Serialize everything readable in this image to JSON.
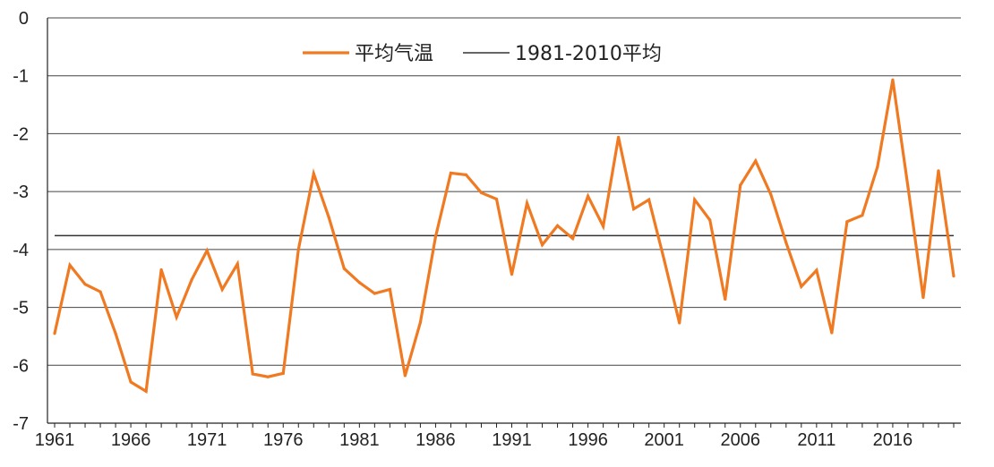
{
  "chart_data": {
    "type": "line",
    "title": "",
    "xlabel": "",
    "ylabel": "",
    "xlim": [
      1961,
      2020
    ],
    "ylim": [
      -7,
      0
    ],
    "yticks": [
      "0",
      "-1",
      "-2",
      "-3",
      "-4",
      "-5",
      "-6",
      "-7"
    ],
    "xticks": [
      "1961",
      "1966",
      "1971",
      "1976",
      "1981",
      "1986",
      "1991",
      "1996",
      "2001",
      "2006",
      "2011",
      "2016"
    ],
    "grid": "horizontal",
    "legend_position": "top-center",
    "series": [
      {
        "name": "平均气温",
        "color": "#f07a22",
        "x": [
          1961,
          1962,
          1963,
          1964,
          1965,
          1966,
          1967,
          1968,
          1969,
          1970,
          1971,
          1972,
          1973,
          1974,
          1975,
          1976,
          1977,
          1978,
          1979,
          1980,
          1981,
          1982,
          1983,
          1984,
          1985,
          1986,
          1987,
          1988,
          1989,
          1990,
          1991,
          1992,
          1993,
          1994,
          1995,
          1996,
          1997,
          1998,
          1999,
          2000,
          2001,
          2002,
          2003,
          2004,
          2005,
          2006,
          2007,
          2008,
          2009,
          2010,
          2011,
          2012,
          2013,
          2014,
          2015,
          2016,
          2017,
          2018,
          2019,
          2020
        ],
        "values": [
          -5.45,
          -4.27,
          -4.6,
          -4.73,
          -5.45,
          -6.29,
          -6.45,
          -4.35,
          -5.17,
          -4.52,
          -4.02,
          -4.69,
          -4.25,
          -6.15,
          -6.2,
          -6.14,
          -4.0,
          -2.69,
          -3.45,
          -4.33,
          -4.57,
          -4.76,
          -4.69,
          -6.18,
          -5.26,
          -3.78,
          -2.68,
          -2.71,
          -3.02,
          -3.13,
          -4.43,
          -3.2,
          -3.92,
          -3.59,
          -3.81,
          -3.08,
          -3.6,
          -2.06,
          -3.3,
          -3.14,
          -4.18,
          -5.27,
          -3.14,
          -3.49,
          -4.86,
          -2.89,
          -2.47,
          -3.05,
          -3.88,
          -4.64,
          -4.36,
          -5.44,
          -3.52,
          -3.41,
          -2.57,
          -1.07,
          -2.92,
          -4.83,
          -2.64,
          -4.46
        ]
      },
      {
        "name": "1981-2010平均",
        "color": "#333333",
        "value": -3.76
      }
    ]
  }
}
